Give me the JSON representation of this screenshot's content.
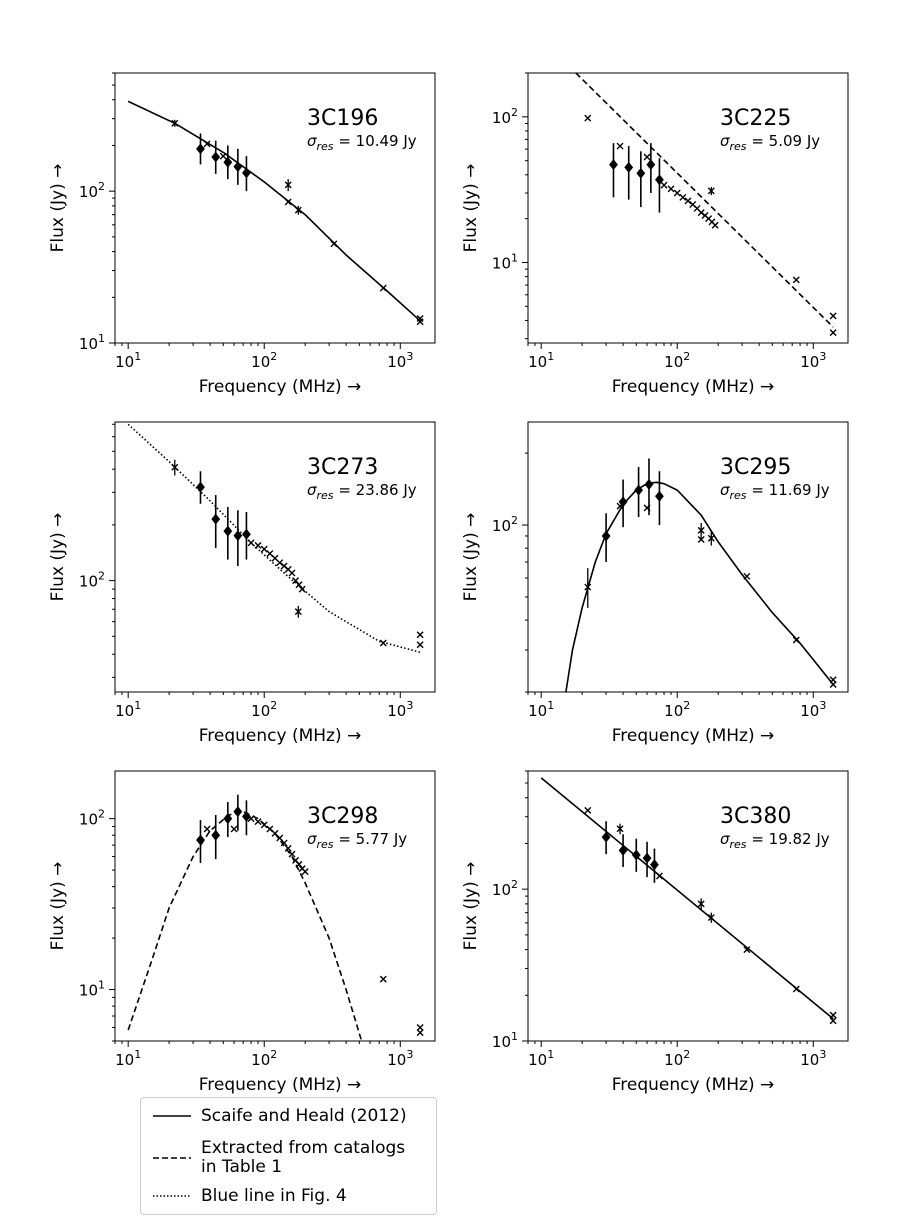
{
  "chart_data": [
    {
      "type": "scatter",
      "title": "3C196",
      "sigma_label": "σ_res = 10.49 Jy",
      "sigma_value": "10.49",
      "xlabel": "Frequency (MHz) →",
      "ylabel": "Flux (Jy) →",
      "xscale": "log",
      "yscale": "log",
      "xlim": [
        8,
        1800
      ],
      "ylim": [
        10,
        600
      ],
      "xticks": [
        10,
        100,
        1000
      ],
      "xtick_labels": [
        "10^1",
        "10^2",
        "10^3"
      ],
      "yticks": [
        10,
        100
      ],
      "ytick_labels": [
        "10^1",
        "10^2"
      ],
      "model_style": "solid",
      "model": [
        [
          10,
          390
        ],
        [
          22,
          280
        ],
        [
          50,
          180
        ],
        [
          100,
          115
        ],
        [
          200,
          70
        ],
        [
          400,
          38
        ],
        [
          800,
          22
        ],
        [
          1400,
          14
        ]
      ],
      "diamonds": [
        {
          "x": 34,
          "y": 190,
          "lo": 150,
          "hi": 240
        },
        {
          "x": 44,
          "y": 168,
          "lo": 130,
          "hi": 215
        },
        {
          "x": 54,
          "y": 155,
          "lo": 120,
          "hi": 200
        },
        {
          "x": 64,
          "y": 145,
          "lo": 110,
          "hi": 190
        },
        {
          "x": 74,
          "y": 132,
          "lo": 100,
          "hi": 170
        }
      ],
      "crosses": [
        {
          "x": 22,
          "y": 280,
          "lo": 265,
          "hi": 295
        },
        {
          "x": 38,
          "y": 205
        },
        {
          "x": 50,
          "y": 170
        },
        {
          "x": 150,
          "y": 110,
          "lo": 100,
          "hi": 120
        },
        {
          "x": 150,
          "y": 85
        },
        {
          "x": 178,
          "y": 75,
          "lo": 70,
          "hi": 80
        },
        {
          "x": 325,
          "y": 45
        },
        {
          "x": 750,
          "y": 23
        },
        {
          "x": 1400,
          "y": 14.5
        },
        {
          "x": 1400,
          "y": 13.8
        }
      ]
    },
    {
      "type": "scatter",
      "title": "3C225",
      "sigma_label": "σ_res = 5.09 Jy",
      "sigma_value": "5.09",
      "xlabel": "Frequency (MHz) →",
      "ylabel": "Flux (Jy) →",
      "xscale": "log",
      "yscale": "log",
      "xlim": [
        8,
        1800
      ],
      "ylim": [
        2.8,
        200
      ],
      "xticks": [
        10,
        100,
        1000
      ],
      "xtick_labels": [
        "10^1",
        "10^2",
        "10^3"
      ],
      "yticks": [
        10,
        100
      ],
      "ytick_labels": [
        "10^1",
        "10^2"
      ],
      "model_style": "dashed",
      "model": [
        [
          18,
          200
        ],
        [
          1400,
          3.6
        ]
      ],
      "diamonds": [
        {
          "x": 34,
          "y": 47,
          "lo": 28,
          "hi": 66
        },
        {
          "x": 44,
          "y": 45,
          "lo": 27,
          "hi": 63
        },
        {
          "x": 54,
          "y": 41,
          "lo": 24,
          "hi": 58
        },
        {
          "x": 64,
          "y": 47,
          "lo": 30,
          "hi": 66
        },
        {
          "x": 74,
          "y": 37,
          "lo": 22,
          "hi": 52
        }
      ],
      "crosses": [
        {
          "x": 22,
          "y": 98
        },
        {
          "x": 38,
          "y": 63
        },
        {
          "x": 60,
          "y": 53
        },
        {
          "x": 80,
          "y": 34
        },
        {
          "x": 90,
          "y": 32
        },
        {
          "x": 100,
          "y": 30
        },
        {
          "x": 110,
          "y": 28
        },
        {
          "x": 120,
          "y": 26.5
        },
        {
          "x": 130,
          "y": 25
        },
        {
          "x": 140,
          "y": 23.5
        },
        {
          "x": 150,
          "y": 22
        },
        {
          "x": 160,
          "y": 21
        },
        {
          "x": 170,
          "y": 20
        },
        {
          "x": 180,
          "y": 19
        },
        {
          "x": 190,
          "y": 18
        },
        {
          "x": 178,
          "y": 31,
          "lo": 29,
          "hi": 33
        },
        {
          "x": 750,
          "y": 7.6
        },
        {
          "x": 1400,
          "y": 4.3
        },
        {
          "x": 1400,
          "y": 3.3
        }
      ]
    },
    {
      "type": "scatter",
      "title": "3C273",
      "sigma_label": "σ_res = 23.86 Jy",
      "sigma_value": "23.86",
      "xlabel": "Frequency (MHz) →",
      "ylabel": "Flux (Jy) →",
      "xscale": "log",
      "yscale": "log",
      "xlim": [
        8,
        1800
      ],
      "ylim": [
        25,
        720
      ],
      "xticks": [
        10,
        100,
        1000
      ],
      "xtick_labels": [
        "10^1",
        "10^2",
        "10^3"
      ],
      "yticks": [
        100
      ],
      "ytick_labels": [
        "10^2"
      ],
      "model_style": "dotted",
      "model": [
        [
          10,
          700
        ],
        [
          20,
          440
        ],
        [
          40,
          270
        ],
        [
          80,
          160
        ],
        [
          150,
          105
        ],
        [
          300,
          68
        ],
        [
          700,
          47
        ],
        [
          1400,
          41
        ]
      ],
      "diamonds": [
        {
          "x": 34,
          "y": 320,
          "lo": 260,
          "hi": 390
        },
        {
          "x": 44,
          "y": 215,
          "lo": 150,
          "hi": 290
        },
        {
          "x": 54,
          "y": 185,
          "lo": 130,
          "hi": 250
        },
        {
          "x": 64,
          "y": 175,
          "lo": 120,
          "hi": 240
        },
        {
          "x": 74,
          "y": 178,
          "lo": 130,
          "hi": 235
        }
      ],
      "crosses": [
        {
          "x": 22,
          "y": 410,
          "lo": 370,
          "hi": 450
        },
        {
          "x": 80,
          "y": 160
        },
        {
          "x": 90,
          "y": 155
        },
        {
          "x": 100,
          "y": 148
        },
        {
          "x": 110,
          "y": 140
        },
        {
          "x": 120,
          "y": 132
        },
        {
          "x": 130,
          "y": 125
        },
        {
          "x": 140,
          "y": 120
        },
        {
          "x": 150,
          "y": 115
        },
        {
          "x": 160,
          "y": 110
        },
        {
          "x": 170,
          "y": 100
        },
        {
          "x": 180,
          "y": 95
        },
        {
          "x": 190,
          "y": 90
        },
        {
          "x": 178,
          "y": 68,
          "lo": 63,
          "hi": 73
        },
        {
          "x": 750,
          "y": 46
        },
        {
          "x": 1400,
          "y": 51
        },
        {
          "x": 1400,
          "y": 45
        }
      ]
    },
    {
      "type": "scatter",
      "title": "3C295",
      "sigma_label": "σ_res = 11.69 Jy",
      "sigma_value": "11.69",
      "xlabel": "Frequency (MHz) →",
      "ylabel": "Flux (Jy) →",
      "xscale": "log",
      "yscale": "log",
      "xlim": [
        8,
        1800
      ],
      "ylim": [
        20,
        270
      ],
      "xticks": [
        10,
        100,
        1000
      ],
      "xtick_labels": [
        "10^1",
        "10^2",
        "10^3"
      ],
      "yticks": [
        100
      ],
      "ytick_labels": [
        "10^2"
      ],
      "model_style": "solid",
      "model": [
        [
          15.2,
          20
        ],
        [
          17,
          30
        ],
        [
          20,
          45
        ],
        [
          25,
          70
        ],
        [
          30,
          92
        ],
        [
          40,
          122
        ],
        [
          50,
          140
        ],
        [
          60,
          149
        ],
        [
          70,
          151
        ],
        [
          80,
          149
        ],
        [
          100,
          140
        ],
        [
          150,
          110
        ],
        [
          200,
          85
        ],
        [
          300,
          62
        ],
        [
          500,
          43
        ],
        [
          800,
          32
        ],
        [
          1400,
          21.5
        ]
      ],
      "diamonds": [
        {
          "x": 30,
          "y": 90,
          "lo": 70,
          "hi": 112
        },
        {
          "x": 40,
          "y": 125,
          "lo": 98,
          "hi": 155
        },
        {
          "x": 52,
          "y": 140,
          "lo": 108,
          "hi": 175
        },
        {
          "x": 62,
          "y": 148,
          "lo": 110,
          "hi": 190
        },
        {
          "x": 74,
          "y": 132,
          "lo": 100,
          "hi": 168
        }
      ],
      "crosses": [
        {
          "x": 22,
          "y": 55,
          "lo": 45,
          "hi": 66
        },
        {
          "x": 38,
          "y": 120
        },
        {
          "x": 60,
          "y": 118
        },
        {
          "x": 150,
          "y": 95,
          "lo": 88,
          "hi": 102
        },
        {
          "x": 150,
          "y": 87
        },
        {
          "x": 178,
          "y": 88,
          "lo": 82,
          "hi": 94
        },
        {
          "x": 325,
          "y": 61
        },
        {
          "x": 750,
          "y": 33
        },
        {
          "x": 1400,
          "y": 22.5
        },
        {
          "x": 1400,
          "y": 21.5
        }
      ]
    },
    {
      "type": "scatter",
      "title": "3C298",
      "sigma_label": "σ_res = 5.77 Jy",
      "sigma_value": "5.77",
      "xlabel": "Frequency (MHz) →",
      "ylabel": "Flux (Jy) →",
      "xscale": "log",
      "yscale": "log",
      "xlim": [
        8,
        1800
      ],
      "ylim": [
        5,
        190
      ],
      "xticks": [
        10,
        100,
        1000
      ],
      "xtick_labels": [
        "10^1",
        "10^2",
        "10^3"
      ],
      "yticks": [
        10,
        100
      ],
      "ytick_labels": [
        "10^1",
        "10^2"
      ],
      "model_style": "dashed",
      "model": [
        [
          10,
          5.8
        ],
        [
          15,
          15
        ],
        [
          20,
          30
        ],
        [
          30,
          60
        ],
        [
          40,
          85
        ],
        [
          55,
          105
        ],
        [
          70,
          110
        ],
        [
          90,
          100
        ],
        [
          120,
          82
        ],
        [
          160,
          60
        ],
        [
          200,
          42
        ],
        [
          300,
          20
        ],
        [
          400,
          10
        ],
        [
          520,
          5
        ]
      ],
      "diamonds": [
        {
          "x": 34,
          "y": 75,
          "lo": 55,
          "hi": 98
        },
        {
          "x": 44,
          "y": 80,
          "lo": 58,
          "hi": 105
        },
        {
          "x": 54,
          "y": 100,
          "lo": 78,
          "hi": 125
        },
        {
          "x": 64,
          "y": 110,
          "lo": 85,
          "hi": 138
        },
        {
          "x": 74,
          "y": 103,
          "lo": 80,
          "hi": 128
        }
      ],
      "crosses": [
        {
          "x": 38,
          "y": 87
        },
        {
          "x": 60,
          "y": 87
        },
        {
          "x": 80,
          "y": 100
        },
        {
          "x": 90,
          "y": 96
        },
        {
          "x": 100,
          "y": 92
        },
        {
          "x": 110,
          "y": 87
        },
        {
          "x": 120,
          "y": 82
        },
        {
          "x": 130,
          "y": 77
        },
        {
          "x": 140,
          "y": 72
        },
        {
          "x": 150,
          "y": 67
        },
        {
          "x": 160,
          "y": 62
        },
        {
          "x": 170,
          "y": 57
        },
        {
          "x": 180,
          "y": 54
        },
        {
          "x": 190,
          "y": 51
        },
        {
          "x": 200,
          "y": 49
        },
        {
          "x": 750,
          "y": 11.5
        },
        {
          "x": 1400,
          "y": 6
        },
        {
          "x": 1400,
          "y": 5.6
        }
      ]
    },
    {
      "type": "scatter",
      "title": "3C380",
      "sigma_label": "σ_res = 19.82 Jy",
      "sigma_value": "19.82",
      "xlabel": "Frequency (MHz) →",
      "ylabel": "Flux (Jy) →",
      "xscale": "log",
      "yscale": "log",
      "xlim": [
        8,
        1800
      ],
      "ylim": [
        10,
        600
      ],
      "xticks": [
        10,
        100,
        1000
      ],
      "xtick_labels": [
        "10^1",
        "10^2",
        "10^3"
      ],
      "yticks": [
        10,
        100
      ],
      "ytick_labels": [
        "10^1",
        "10^2"
      ],
      "model_style": "solid",
      "model": [
        [
          10,
          540
        ],
        [
          1400,
          14
        ]
      ],
      "diamonds": [
        {
          "x": 30,
          "y": 220,
          "lo": 170,
          "hi": 280
        },
        {
          "x": 40,
          "y": 180,
          "lo": 140,
          "hi": 230
        },
        {
          "x": 50,
          "y": 168,
          "lo": 130,
          "hi": 215
        },
        {
          "x": 60,
          "y": 160,
          "lo": 120,
          "hi": 205
        },
        {
          "x": 68,
          "y": 145,
          "lo": 110,
          "hi": 185
        }
      ],
      "crosses": [
        {
          "x": 22,
          "y": 330
        },
        {
          "x": 38,
          "y": 250,
          "lo": 230,
          "hi": 270
        },
        {
          "x": 74,
          "y": 122
        },
        {
          "x": 150,
          "y": 80,
          "lo": 73,
          "hi": 87
        },
        {
          "x": 178,
          "y": 65,
          "lo": 60,
          "hi": 70
        },
        {
          "x": 325,
          "y": 40
        },
        {
          "x": 750,
          "y": 22
        },
        {
          "x": 1400,
          "y": 14.8
        },
        {
          "x": 1400,
          "y": 13.6
        }
      ]
    }
  ],
  "legend": [
    {
      "style": "solid",
      "label": "Scaife and Heald (2012)"
    },
    {
      "style": "dashed",
      "label": "Extracted from catalogs\nin Table 1"
    },
    {
      "style": "dotted",
      "label": "Blue line in Fig. 4"
    }
  ]
}
